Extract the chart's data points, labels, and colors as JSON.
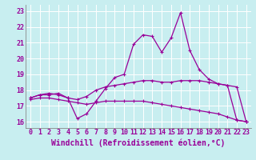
{
  "xlabel": "Windchill (Refroidissement éolien,°C)",
  "bg_color": "#c8eef0",
  "line_color": "#990099",
  "grid_color": "#ffffff",
  "x_ticks": [
    0,
    1,
    2,
    3,
    4,
    5,
    6,
    7,
    8,
    9,
    10,
    11,
    12,
    13,
    14,
    15,
    16,
    17,
    18,
    19,
    20,
    21,
    22,
    23
  ],
  "y_ticks": [
    16,
    17,
    18,
    19,
    20,
    21,
    22,
    23
  ],
  "ylim": [
    15.6,
    23.4
  ],
  "xlim": [
    -0.5,
    23.5
  ],
  "line1_x": [
    0,
    1,
    2,
    3,
    4,
    5,
    6,
    7,
    8,
    9,
    10,
    11,
    12,
    13,
    14,
    15,
    16,
    17,
    18,
    19,
    20,
    21,
    22,
    23
  ],
  "line1_y": [
    17.5,
    17.7,
    17.7,
    17.8,
    17.5,
    16.2,
    16.5,
    17.3,
    18.1,
    18.8,
    19.0,
    20.9,
    21.5,
    21.4,
    20.4,
    21.3,
    22.9,
    20.5,
    19.3,
    18.7,
    18.4,
    18.3,
    16.1,
    16.0
  ],
  "line2_x": [
    0,
    1,
    2,
    3,
    4,
    5,
    6,
    7,
    8,
    9,
    10,
    11,
    12,
    13,
    14,
    15,
    16,
    17,
    18,
    19,
    20,
    21,
    22,
    23
  ],
  "line2_y": [
    17.5,
    17.7,
    17.8,
    17.7,
    17.5,
    17.4,
    17.6,
    18.0,
    18.2,
    18.3,
    18.4,
    18.5,
    18.6,
    18.6,
    18.5,
    18.5,
    18.6,
    18.6,
    18.6,
    18.5,
    18.4,
    18.3,
    18.2,
    16.0
  ],
  "line3_x": [
    0,
    1,
    2,
    3,
    4,
    5,
    6,
    7,
    8,
    9,
    10,
    11,
    12,
    13,
    14,
    15,
    16,
    17,
    18,
    19,
    20,
    21,
    22,
    23
  ],
  "line3_y": [
    17.4,
    17.5,
    17.5,
    17.4,
    17.3,
    17.2,
    17.1,
    17.2,
    17.3,
    17.3,
    17.3,
    17.3,
    17.3,
    17.2,
    17.1,
    17.0,
    16.9,
    16.8,
    16.7,
    16.6,
    16.5,
    16.3,
    16.1,
    16.0
  ],
  "tick_fontsize": 6,
  "label_fontsize": 7,
  "marker": "+"
}
